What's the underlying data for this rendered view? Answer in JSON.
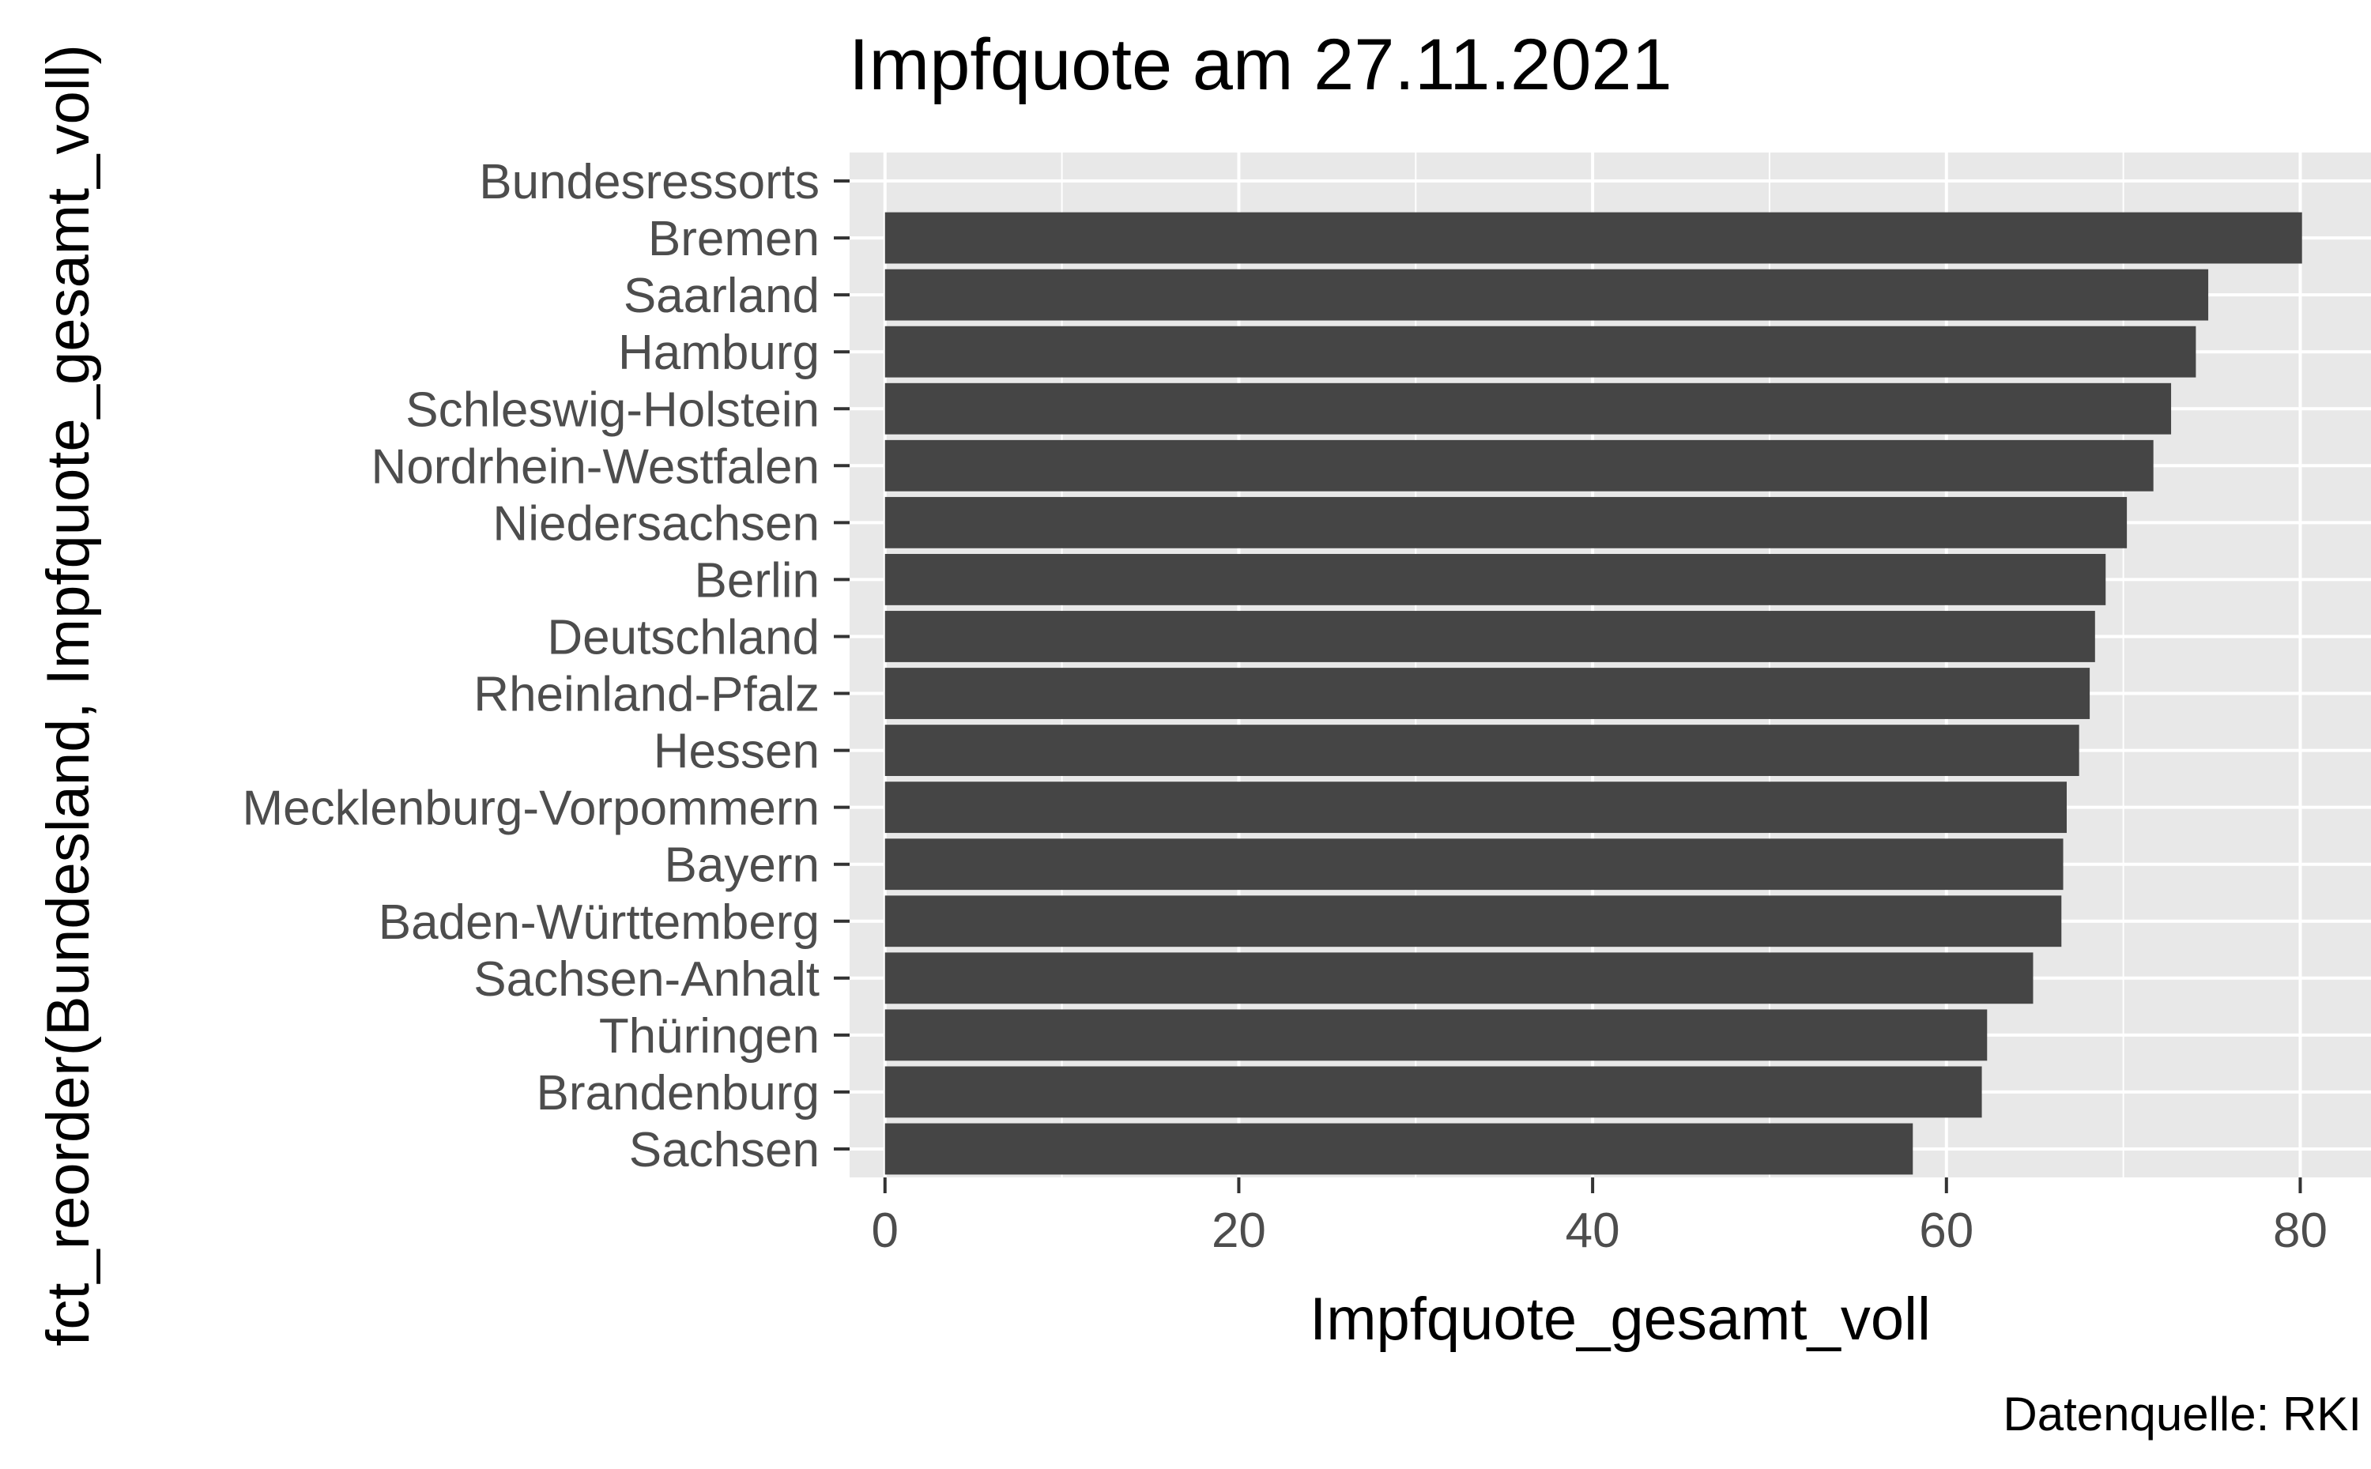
{
  "chart_data": {
    "type": "bar",
    "orientation": "horizontal",
    "title": "Impfquote am 27.11.2021",
    "xlabel": "Impfquote_gesamt_voll",
    "ylabel": "fct_reorder(Bundesland, Impfquote_gesamt_voll)",
    "caption": "Datenquelle: RKI",
    "xlim": [
      -2,
      84
    ],
    "x_ticks": [
      0,
      20,
      40,
      60,
      80
    ],
    "x_tick_labels": [
      "0",
      "20",
      "40",
      "60",
      "80"
    ],
    "grid": true,
    "legend": "none",
    "categories": [
      "Bundesressorts",
      "Bremen",
      "Saarland",
      "Hamburg",
      "Schleswig-Holstein",
      "Nordrhein-Westfalen",
      "Niedersachsen",
      "Berlin",
      "Deutschland",
      "Rheinland-Pfalz",
      "Hessen",
      "Mecklenburg-Vorpommern",
      "Bayern",
      "Baden-Württemberg",
      "Sachsen-Anhalt",
      "Thüringen",
      "Brandenburg",
      "Sachsen"
    ],
    "values": [
      0,
      80.1,
      74.8,
      74.1,
      72.7,
      71.7,
      70.2,
      69.0,
      68.4,
      68.1,
      67.5,
      66.8,
      66.6,
      66.5,
      64.9,
      62.3,
      62.0,
      58.1
    ],
    "colors": {
      "bar": "#454545",
      "panel": "#e8e8e8",
      "grid": "#ffffff",
      "text": "#1a1a1a",
      "tick_text": "#4d4d4d",
      "tick": "#333333"
    }
  }
}
